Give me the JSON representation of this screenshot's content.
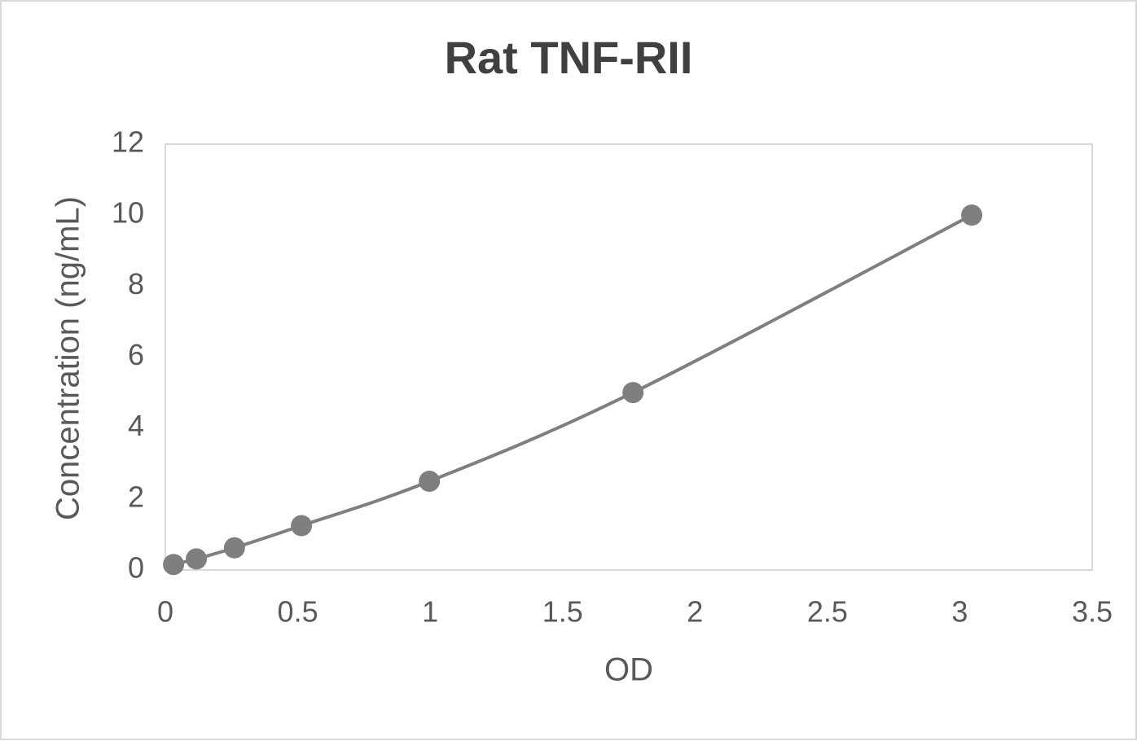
{
  "chart_data": {
    "type": "scatter",
    "title": "Rat TNF-RII",
    "x_label": "OD",
    "y_label": "Concentration (ng/mL)",
    "x": [
      0.031,
      0.117,
      0.261,
      0.514,
      0.997,
      1.766,
      3.045
    ],
    "y": [
      0.156,
      0.3125,
      0.625,
      1.25,
      2.5,
      5,
      10
    ],
    "color": "#7f7f7f",
    "line": "smooth",
    "xlim": [
      0,
      3.5
    ],
    "xticks": [
      0,
      0.5,
      1,
      1.5,
      2,
      2.5,
      3,
      3.5
    ],
    "ylim": [
      0,
      12
    ],
    "yticks": [
      0,
      2,
      4,
      6,
      8,
      10,
      12
    ]
  }
}
